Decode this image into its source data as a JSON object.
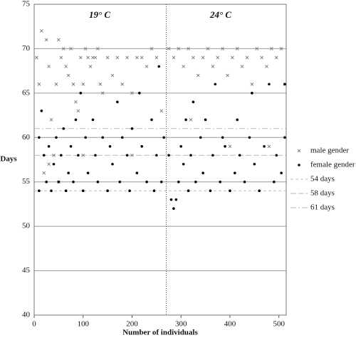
{
  "chart_data": {
    "type": "scatter",
    "xlabel": "Number of individuals",
    "ylabel": "Days",
    "annotations": [
      "19° C",
      "24° C"
    ],
    "xlim": [
      0,
      515
    ],
    "ylim": [
      40,
      75
    ],
    "xticks": [
      0,
      100,
      200,
      300,
      400,
      500
    ],
    "yticks": [
      40,
      45,
      50,
      55,
      60,
      65,
      70,
      75
    ],
    "grid": true,
    "divider_x": 270,
    "series": [
      {
        "name": "male gender",
        "marker": "x",
        "color": "#777777",
        "x": [
          5,
          10,
          15,
          25,
          30,
          35,
          40,
          45,
          50,
          55,
          60,
          65,
          70,
          75,
          80,
          85,
          90,
          95,
          100,
          105,
          110,
          115,
          120,
          125,
          130,
          135,
          140,
          150,
          160,
          170,
          180,
          190,
          200,
          210,
          220,
          230,
          240,
          250,
          260,
          275,
          285,
          295,
          305,
          315,
          325,
          335,
          345,
          355,
          365,
          375,
          385,
          395,
          405,
          415,
          425,
          435,
          445,
          455,
          465,
          475,
          485,
          495,
          505,
          512,
          20,
          30,
          50,
          100,
          200,
          320,
          400,
          480
        ],
        "values": [
          69,
          66,
          72,
          71,
          68,
          62,
          58,
          66,
          71,
          69,
          70,
          68,
          67,
          70,
          66,
          64,
          63,
          69,
          66,
          70,
          69,
          68,
          69,
          69,
          70,
          66,
          65,
          69,
          67,
          69,
          66,
          69,
          65,
          69,
          69,
          68,
          70,
          69,
          63,
          70,
          69,
          70,
          68,
          70,
          69,
          67,
          69,
          70,
          68,
          69,
          70,
          67,
          69,
          70,
          68,
          69,
          66,
          70,
          69,
          68,
          70,
          69,
          70,
          66,
          56,
          57,
          55,
          58,
          58,
          62,
          59,
          59
        ]
      },
      {
        "name": "female gender",
        "marker": "dot",
        "color": "#000000",
        "x": [
          10,
          10,
          15,
          20,
          25,
          30,
          35,
          40,
          45,
          50,
          55,
          60,
          65,
          70,
          75,
          80,
          85,
          90,
          95,
          100,
          105,
          110,
          120,
          125,
          130,
          140,
          150,
          155,
          160,
          170,
          175,
          180,
          190,
          195,
          200,
          210,
          215,
          220,
          230,
          240,
          245,
          250,
          255,
          260,
          265,
          275,
          280,
          285,
          290,
          295,
          300,
          305,
          310,
          315,
          320,
          325,
          330,
          340,
          345,
          350,
          360,
          365,
          370,
          380,
          385,
          390,
          400,
          410,
          415,
          420,
          430,
          440,
          445,
          450,
          460,
          470,
          480,
          490,
          495,
          505,
          512,
          512
        ],
        "values": [
          54,
          60,
          63,
          58,
          55,
          59,
          54,
          57,
          60,
          55,
          58,
          61,
          54,
          56,
          59,
          55,
          62,
          58,
          65,
          54,
          60,
          56,
          62,
          58,
          55,
          60,
          54,
          59,
          57,
          64,
          55,
          60,
          58,
          54,
          61,
          56,
          65,
          59,
          55,
          62,
          54,
          58,
          68,
          55,
          60,
          58,
          53,
          52,
          53,
          55,
          59,
          57,
          62,
          54,
          58,
          64,
          55,
          60,
          56,
          62,
          54,
          58,
          66,
          55,
          60,
          59,
          54,
          56,
          62,
          58,
          55,
          60,
          65,
          57,
          54,
          59,
          66,
          55,
          58,
          56,
          60,
          66
        ]
      }
    ],
    "reference_lines": [
      {
        "name": "54 days",
        "value": 54,
        "dash": "4,3",
        "color": "#bbbbbb"
      },
      {
        "name": "58 days",
        "value": 58,
        "dash": "8,3",
        "color": "#bbbbbb"
      },
      {
        "name": "61 days",
        "value": 61,
        "dash": "8,3,2,3",
        "color": "#bbbbbb"
      }
    ]
  }
}
